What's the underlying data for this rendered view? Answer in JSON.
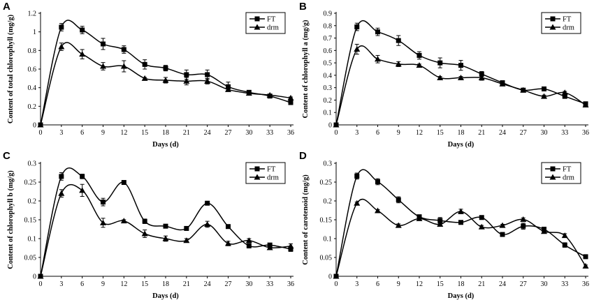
{
  "chart_data": [
    {
      "type": "line",
      "panel": "A",
      "xlabel": "Days (d)",
      "ylabel": "Content of total chlorophyll (mg/g)",
      "x": [
        0,
        3,
        6,
        9,
        12,
        15,
        18,
        21,
        24,
        27,
        30,
        33,
        36
      ],
      "x_ticks": [
        "0",
        "3",
        "6",
        "9",
        "12",
        "15",
        "18",
        "21",
        "24",
        "27",
        "30",
        "33",
        "36"
      ],
      "ylim": [
        0,
        1.2
      ],
      "y_ticks": [
        "0",
        "0.2",
        "0.4",
        "0.6",
        "0.8",
        "1",
        "1.2"
      ],
      "legend": [
        "FT",
        "drm"
      ],
      "series": [
        {
          "name": "FT",
          "marker": "square",
          "values": [
            0,
            1.05,
            1.02,
            0.87,
            0.81,
            0.65,
            0.61,
            0.54,
            0.54,
            0.41,
            0.35,
            0.31,
            0.24
          ],
          "errors": [
            0,
            0.04,
            0.04,
            0.06,
            0.04,
            0.05,
            0.03,
            0.05,
            0.05,
            0.05,
            0.02,
            0.02,
            0.02
          ]
        },
        {
          "name": "drm",
          "marker": "triangle",
          "values": [
            0,
            0.84,
            0.76,
            0.63,
            0.63,
            0.5,
            0.48,
            0.47,
            0.47,
            0.38,
            0.34,
            0.32,
            0.29
          ],
          "errors": [
            0,
            0.04,
            0.05,
            0.04,
            0.06,
            0.01,
            0.03,
            0.04,
            0.03,
            0.02,
            0.01,
            0.01,
            0.01
          ]
        }
      ]
    },
    {
      "type": "line",
      "panel": "B",
      "xlabel": "Days (d)",
      "ylabel": "Content of chlorophyll a (mg/g)",
      "x": [
        0,
        3,
        6,
        9,
        12,
        15,
        18,
        21,
        24,
        27,
        30,
        33,
        36
      ],
      "x_ticks": [
        "0",
        "3",
        "6",
        "9",
        "12",
        "15",
        "18",
        "21",
        "24",
        "27",
        "30",
        "33",
        "36"
      ],
      "ylim": [
        0,
        0.9
      ],
      "y_ticks": [
        "0",
        "0.1",
        "0.2",
        "0.3",
        "0.4",
        "0.5",
        "0.6",
        "0.7",
        "0.8",
        "0.9"
      ],
      "legend": [
        "FT",
        "drm"
      ],
      "series": [
        {
          "name": "FT",
          "marker": "square",
          "values": [
            0,
            0.79,
            0.75,
            0.68,
            0.56,
            0.5,
            0.48,
            0.41,
            0.34,
            0.28,
            0.29,
            0.23,
            0.17
          ],
          "errors": [
            0,
            0.03,
            0.03,
            0.04,
            0.03,
            0.04,
            0.04,
            0.02,
            0.01,
            0.01,
            0.01,
            0.01,
            0.01
          ]
        },
        {
          "name": "drm",
          "marker": "triangle",
          "values": [
            0,
            0.61,
            0.53,
            0.49,
            0.48,
            0.38,
            0.38,
            0.38,
            0.33,
            0.28,
            0.23,
            0.26,
            0.16
          ],
          "errors": [
            0,
            0.04,
            0.03,
            0.02,
            0.01,
            0.01,
            0.01,
            0.02,
            0.01,
            0.01,
            0.01,
            0.01,
            0.01
          ]
        }
      ]
    },
    {
      "type": "line",
      "panel": "C",
      "xlabel": "Days (d)",
      "ylabel": "Content of chlorophyll b (mg/g)",
      "x": [
        0,
        3,
        6,
        9,
        12,
        15,
        18,
        21,
        24,
        27,
        30,
        33,
        36
      ],
      "x_ticks": [
        "0",
        "3",
        "6",
        "9",
        "12",
        "15",
        "18",
        "21",
        "24",
        "27",
        "30",
        "33",
        "36"
      ],
      "ylim": [
        0,
        0.3
      ],
      "y_ticks": [
        "0",
        "0.05",
        "0.1",
        "0.15",
        "0.2",
        "0.25",
        "0.3"
      ],
      "legend": [
        "FT",
        "drm"
      ],
      "series": [
        {
          "name": "FT",
          "marker": "square",
          "values": [
            0,
            0.265,
            0.265,
            0.197,
            0.249,
            0.146,
            0.133,
            0.127,
            0.194,
            0.132,
            0.081,
            0.083,
            0.072
          ],
          "errors": [
            0,
            0.01,
            0.006,
            0.01,
            0.003,
            0.006,
            0.005,
            0.005,
            0.003,
            0.003,
            0.006,
            0.003,
            0.006
          ]
        },
        {
          "name": "drm",
          "marker": "triangle",
          "values": [
            0,
            0.22,
            0.228,
            0.142,
            0.147,
            0.113,
            0.1,
            0.095,
            0.138,
            0.087,
            0.095,
            0.076,
            0.08
          ],
          "errors": [
            0,
            0.01,
            0.016,
            0.012,
            0.003,
            0.01,
            0.007,
            0.005,
            0.008,
            0.006,
            0.005,
            0.005,
            0.006
          ]
        }
      ]
    },
    {
      "type": "line",
      "panel": "D",
      "xlabel": "Days (d)",
      "ylabel": "Content of carotenoid (mg/g)",
      "x": [
        0,
        3,
        6,
        9,
        12,
        15,
        18,
        21,
        24,
        27,
        30,
        33,
        36
      ],
      "x_ticks": [
        "0",
        "3",
        "6",
        "9",
        "12",
        "15",
        "18",
        "21",
        "24",
        "27",
        "30",
        "33",
        "36"
      ],
      "ylim": [
        0,
        0.3
      ],
      "y_ticks": [
        "0",
        "0.05",
        "0.1",
        "0.15",
        "0.2",
        "0.25",
        "0.3"
      ],
      "legend": [
        "FT",
        "drm"
      ],
      "series": [
        {
          "name": "FT",
          "marker": "square",
          "values": [
            0,
            0.266,
            0.251,
            0.203,
            0.158,
            0.148,
            0.143,
            0.156,
            0.111,
            0.133,
            0.125,
            0.083,
            0.052
          ],
          "errors": [
            0,
            0.008,
            0.008,
            0.008,
            0.004,
            0.008,
            0.003,
            0.004,
            0.004,
            0.008,
            0.004,
            0.006,
            0.004
          ]
        },
        {
          "name": "drm",
          "marker": "triangle",
          "values": [
            0,
            0.194,
            0.174,
            0.135,
            0.153,
            0.138,
            0.172,
            0.131,
            0.135,
            0.151,
            0.119,
            0.108,
            0.027
          ],
          "errors": [
            0,
            0.003,
            0.003,
            0.004,
            0.003,
            0.003,
            0.006,
            0.004,
            0.003,
            0.004,
            0.003,
            0.005,
            0.003
          ]
        }
      ]
    }
  ]
}
